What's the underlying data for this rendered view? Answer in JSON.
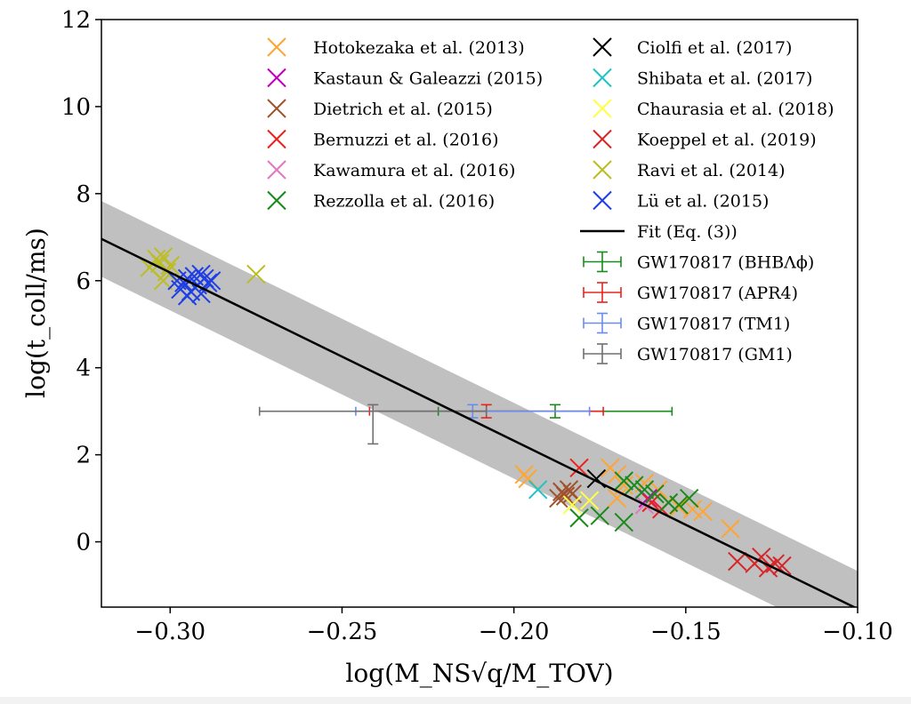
{
  "chart_data": {
    "type": "scatter",
    "xlabel": "log(M_NS√q/M_TOV)",
    "ylabel": "log(t_coll/ms)",
    "xlim": [
      -0.32,
      -0.1
    ],
    "ylim": [
      -1.5,
      12
    ],
    "x_ticks": [
      -0.3,
      -0.25,
      -0.2,
      -0.15,
      -0.1
    ],
    "x_tick_labels": [
      "−0.30",
      "−0.25",
      "−0.20",
      "−0.15",
      "−0.10"
    ],
    "y_ticks": [
      0,
      2,
      4,
      6,
      8,
      10,
      12
    ],
    "y_tick_labels": [
      "0",
      "2",
      "4",
      "6",
      "8",
      "10",
      "12"
    ],
    "legend_placement": "top-right",
    "series": [
      {
        "name": "Hotokezaka et al. (2013)",
        "color": "#ffa533",
        "points": [
          [
            -0.197,
            1.55
          ],
          [
            -0.196,
            1.45
          ],
          [
            -0.172,
            1.7
          ],
          [
            -0.17,
            1.55
          ],
          [
            -0.168,
            1.3
          ],
          [
            -0.162,
            1.35
          ],
          [
            -0.158,
            1.2
          ],
          [
            -0.152,
            0.8
          ],
          [
            -0.148,
            0.75
          ],
          [
            -0.145,
            0.7
          ],
          [
            -0.137,
            0.3
          ],
          [
            -0.17,
            1.0
          ]
        ]
      },
      {
        "name": "Kastaun & Galeazzi (2015)",
        "color": "#bf00bf",
        "points": [
          [
            -0.161,
            1.0
          ]
        ]
      },
      {
        "name": "Dietrich et al. (2015)",
        "color": "#a0522d",
        "points": [
          [
            -0.186,
            1.15
          ],
          [
            -0.185,
            1.05
          ],
          [
            -0.184,
            1.2
          ],
          [
            -0.187,
            1.0
          ],
          [
            -0.183,
            1.1
          ]
        ]
      },
      {
        "name": "Bernuzzi et al. (2016)",
        "color": "#e8231f",
        "points": [
          [
            -0.181,
            1.7
          ],
          [
            -0.16,
            0.9
          ],
          [
            -0.157,
            0.75
          ]
        ]
      },
      {
        "name": "Kawamura et al. (2016)",
        "color": "#e377c2",
        "points": [
          [
            -0.162,
            0.85
          ]
        ]
      },
      {
        "name": "Rezzolla et al. (2016)",
        "color": "#1a8a1a",
        "points": [
          [
            -0.181,
            0.55
          ],
          [
            -0.175,
            0.6
          ],
          [
            -0.168,
            0.45
          ],
          [
            -0.168,
            1.4
          ],
          [
            -0.165,
            1.3
          ],
          [
            -0.162,
            1.2
          ],
          [
            -0.159,
            1.1
          ],
          [
            -0.155,
            0.9
          ],
          [
            -0.152,
            0.85
          ],
          [
            -0.149,
            1.0
          ]
        ]
      },
      {
        "name": "Ciolfi et al. (2017)",
        "color": "#000000",
        "points": [
          [
            -0.176,
            1.45
          ]
        ]
      },
      {
        "name": "Shibata et al. (2017)",
        "color": "#22c3c3",
        "points": [
          [
            -0.193,
            1.2
          ]
        ]
      },
      {
        "name": "Chaurasia et al. (2018)",
        "color": "#ffff44",
        "points": [
          [
            -0.183,
            0.85
          ],
          [
            -0.178,
            0.95
          ]
        ]
      },
      {
        "name": "Koeppel et al. (2019)",
        "color": "#d62728",
        "points": [
          [
            -0.135,
            -0.45
          ],
          [
            -0.13,
            -0.5
          ],
          [
            -0.128,
            -0.35
          ],
          [
            -0.126,
            -0.6
          ],
          [
            -0.124,
            -0.5
          ],
          [
            -0.122,
            -0.55
          ]
        ]
      },
      {
        "name": "Ravi et al. (2014)",
        "color": "#bcbd22",
        "points": [
          [
            -0.306,
            6.3
          ],
          [
            -0.304,
            6.5
          ],
          [
            -0.303,
            6.4
          ],
          [
            -0.302,
            6.55
          ],
          [
            -0.301,
            6.2
          ],
          [
            -0.3,
            6.35
          ],
          [
            -0.302,
            6.0
          ],
          [
            -0.275,
            6.15
          ]
        ]
      },
      {
        "name": "Lü et al. (2015)",
        "color": "#1f3fe5",
        "points": [
          [
            -0.298,
            6.0
          ],
          [
            -0.297,
            5.8
          ],
          [
            -0.296,
            5.95
          ],
          [
            -0.295,
            6.05
          ],
          [
            -0.294,
            5.75
          ],
          [
            -0.293,
            6.1
          ],
          [
            -0.292,
            5.9
          ],
          [
            -0.291,
            6.15
          ],
          [
            -0.29,
            6.05
          ],
          [
            -0.289,
            5.95
          ],
          [
            -0.288,
            6.0
          ],
          [
            -0.295,
            5.65
          ],
          [
            -0.291,
            5.7
          ]
        ]
      }
    ],
    "fit": {
      "name": "Fit (Eq. (3))",
      "color": "#000000",
      "x": [
        -0.32,
        -0.1
      ],
      "y": [
        6.96,
        -1.54
      ],
      "band_halfwidth": 0.87,
      "band_color": "#c0c0c0"
    },
    "errorbar_series": [
      {
        "name": "GW170817 (BHBΛϕ)",
        "color": "#1a8a1a",
        "x": -0.188,
        "y": 3.0,
        "xerr": [
          0.034,
          0.034
        ],
        "yerr": [
          0.15,
          0.15
        ],
        "caps_x": [
          -0.222,
          -0.154
        ]
      },
      {
        "name": "GW170817 (APR4)",
        "color": "#e8231f",
        "x": -0.208,
        "y": 3.0,
        "xerr": [
          0.034,
          0.034
        ],
        "yerr": [
          0.15,
          0.15
        ],
        "caps_x": [
          -0.242,
          -0.174
        ]
      },
      {
        "name": "GW170817 (TM1)",
        "color": "#6a8cf0",
        "x": -0.212,
        "y": 3.0,
        "xerr": [
          0.034,
          0.034
        ],
        "yerr": [
          0.15,
          0.15
        ],
        "caps_x": [
          -0.246,
          -0.178
        ]
      },
      {
        "name": "GW170817 (GM1)",
        "color": "#707070",
        "x": -0.241,
        "y": 3.0,
        "xerr": [
          0.033,
          0.033
        ],
        "yerr": [
          0.75,
          0.15
        ],
        "caps_x": [
          -0.274,
          -0.208
        ]
      }
    ]
  }
}
